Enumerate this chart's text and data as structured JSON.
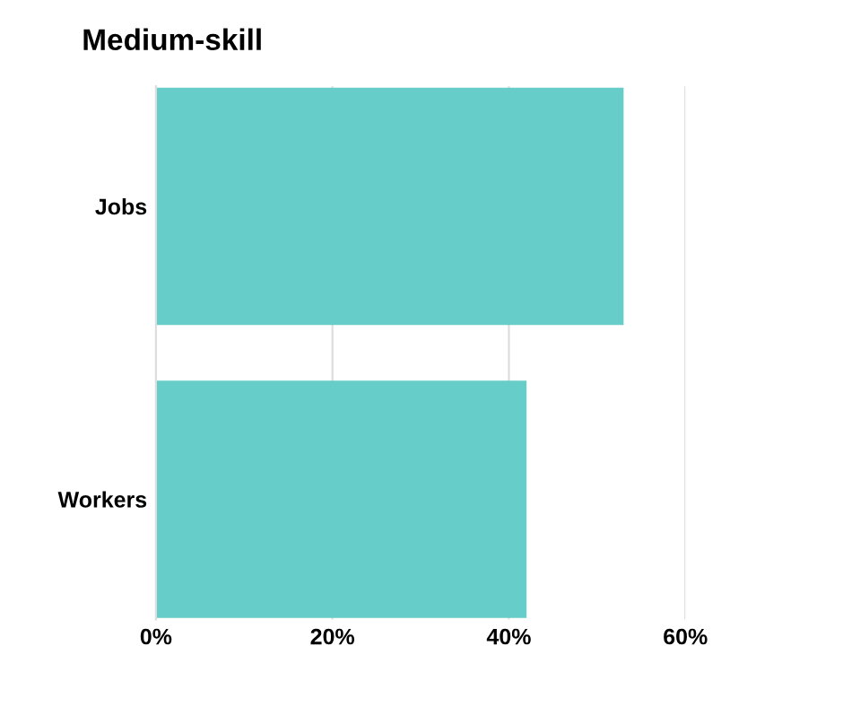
{
  "chart_data": {
    "type": "bar",
    "orientation": "horizontal",
    "title": "Medium-skill",
    "categories": [
      "Jobs",
      "Workers"
    ],
    "series": [
      {
        "color": "#66cdc8",
        "values": [
          53,
          42
        ]
      }
    ],
    "xlim": [
      0,
      60
    ],
    "xticks": [
      {
        "value": 0,
        "label": "0%"
      },
      {
        "value": 20,
        "label": "20%"
      },
      {
        "value": 40,
        "label": "40%"
      },
      {
        "value": 60,
        "label": "60%"
      }
    ],
    "grid": "x",
    "legend": false
  }
}
